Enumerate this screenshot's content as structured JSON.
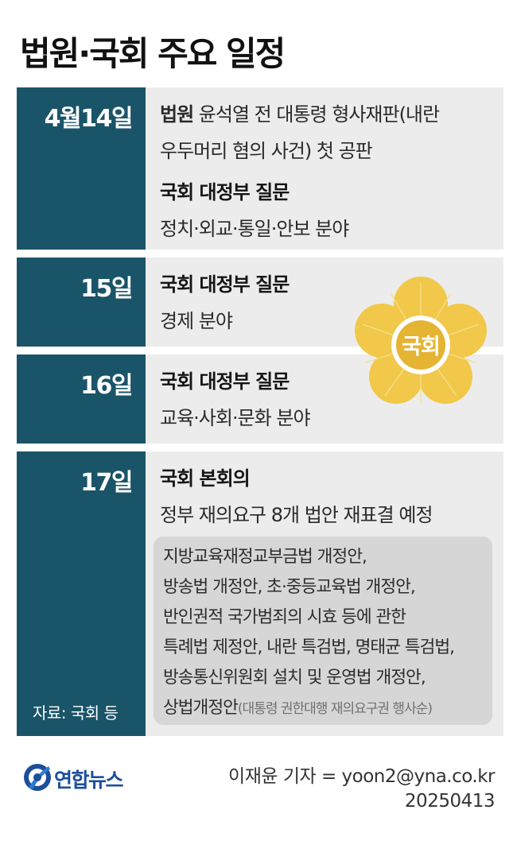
{
  "title": "법원·국회 주요 일정",
  "schedule": [
    {
      "date": "4월14일",
      "line1_bold": "법원",
      "line1_rest": " 윤석열 전 대통령 형사재판(내란",
      "line2": "우두머리 혐의 사건) 첫 공판",
      "line3_bold": "국회 대정부 질문",
      "line4": "정치·외교·통일·안보 분야"
    },
    {
      "date": "15일",
      "heading": "국회 대정부 질문",
      "detail": "경제 분야"
    },
    {
      "date": "16일",
      "heading": "국회 대정부 질문",
      "detail": "교육·사회·문화 분야"
    },
    {
      "date": "17일",
      "heading": "국회 본회의",
      "detail": "정부 재의요구 8개 법안 재표결 예정",
      "bills": [
        "지방교육재정교부금법 개정안,",
        "방송법 개정안, 초·중등교육법 개정안,",
        "반인권적 국가범죄의 시효 등에 관한",
        "특례법 제정안, 내란 특검법, 명태균 특검법,",
        "방송통신위원회 설치 및 운영법 개정안,",
        "상법개정안"
      ],
      "bills_note": "(대통령 권한대행 재의요구권 행사순)"
    }
  ],
  "source": "자료: 국회 등",
  "emblem_text": "국회",
  "logo_text": "연합뉴스",
  "credit": {
    "author": "이재윤 기자 = yoon2@yna.co.kr",
    "date": "20250413"
  },
  "colors": {
    "date_column": "#1a5468",
    "content_bg": "#ececec",
    "note_box": "#d6d6d6",
    "emblem_gold": "#f1c84a",
    "logo_blue": "#1d4e9a"
  }
}
